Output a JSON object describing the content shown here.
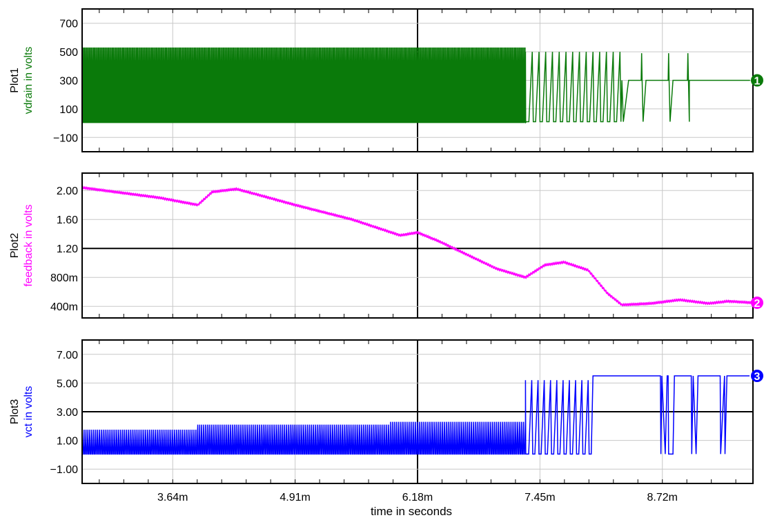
{
  "chart_data": [
    {
      "type": "line",
      "plot_label": "Plot1",
      "ylabel": "vdrain in volts",
      "marker": "1",
      "color": "#0a7a0a",
      "ylim": [
        -200,
        800
      ],
      "yticks": [
        700,
        500,
        300,
        100,
        -100
      ],
      "ytick_labels": [
        "700",
        "500",
        "300",
        "100",
        "−100"
      ],
      "grid_highlight": [],
      "waveform": {
        "kind": "switching",
        "segments": [
          {
            "x_start_ms": 2.7,
            "x_end_ms": 7.3,
            "low": 5,
            "high": 530,
            "flat": 280
          },
          {
            "x_start_ms": 7.3,
            "x_end_ms": 8.3,
            "low": 10,
            "high": 500,
            "flat": 300
          },
          {
            "x_start_ms": 8.3,
            "x_end_ms": 9.66,
            "low": 10,
            "high": 500,
            "flat": 300
          }
        ],
        "settle_value": 300
      },
      "series": [
        {
          "name": "vdrain",
          "x_ms": [
            2.7,
            3.64,
            4.91,
            6.18,
            7.3,
            7.45,
            8.0,
            8.3,
            8.72,
            9.66
          ],
          "envelope_min": [
            5,
            5,
            5,
            5,
            10,
            10,
            10,
            300,
            300,
            300
          ],
          "envelope_max": [
            530,
            530,
            525,
            520,
            500,
            500,
            500,
            300,
            300,
            300
          ]
        }
      ]
    },
    {
      "type": "line",
      "plot_label": "Plot2",
      "ylabel": "feedback in volts",
      "marker": "2",
      "color": "#ff00ff",
      "ylim": [
        0.24,
        2.24
      ],
      "yticks": [
        2.0,
        1.6,
        1.2,
        0.8,
        0.4
      ],
      "ytick_labels": [
        "2.00",
        "1.60",
        "1.20",
        "800m",
        "400m"
      ],
      "grid_highlight": [
        1.2
      ],
      "series": [
        {
          "name": "feedback",
          "x_ms": [
            2.7,
            3.5,
            3.9,
            4.05,
            4.3,
            4.5,
            4.91,
            5.5,
            6.0,
            6.18,
            6.4,
            7.0,
            7.3,
            7.5,
            7.7,
            7.95,
            8.15,
            8.3,
            8.6,
            8.9,
            9.2,
            9.4,
            9.66
          ],
          "values": [
            2.04,
            1.9,
            1.8,
            1.98,
            2.02,
            1.95,
            1.8,
            1.6,
            1.38,
            1.42,
            1.3,
            0.92,
            0.8,
            0.97,
            1.01,
            0.9,
            0.58,
            0.42,
            0.44,
            0.49,
            0.44,
            0.47,
            0.45
          ]
        }
      ]
    },
    {
      "type": "line",
      "plot_label": "Plot3",
      "ylabel": "vct in volts",
      "marker": "3",
      "color": "#0000ff",
      "ylim": [
        -2,
        8
      ],
      "yticks": [
        7,
        5,
        3,
        1,
        -1
      ],
      "ytick_labels": [
        "7.00",
        "5.00",
        "3.00",
        "1.00",
        "−1.00"
      ],
      "grid_highlight": [
        3
      ],
      "waveform": {
        "kind": "switching",
        "segments": [
          {
            "x_start_ms": 2.7,
            "x_end_ms": 3.9,
            "low": 0.05,
            "high": 1.75
          },
          {
            "x_start_ms": 3.9,
            "x_end_ms": 5.9,
            "low": 0.05,
            "high": 2.1
          },
          {
            "x_start_ms": 5.9,
            "x_end_ms": 7.3,
            "low": 0.05,
            "high": 2.3
          },
          {
            "x_start_ms": 7.3,
            "x_end_ms": 8.0,
            "low": 0.05,
            "high": 5.2
          },
          {
            "x_start_ms": 8.0,
            "x_end_ms": 9.66,
            "low": 0.05,
            "high": 5.5
          }
        ],
        "settle_value": 5.5
      },
      "series": [
        {
          "name": "vct",
          "x_ms": [
            2.7,
            3.64,
            3.9,
            4.91,
            5.9,
            6.18,
            7.3,
            7.45,
            8.0,
            8.72,
            9.66
          ],
          "envelope_min": [
            0.05,
            0.05,
            0.05,
            0.05,
            0.05,
            0.05,
            0.05,
            0.05,
            5.5,
            0.05,
            5.5
          ],
          "envelope_max": [
            1.75,
            1.75,
            2.1,
            2.1,
            2.3,
            2.3,
            5.0,
            5.2,
            5.5,
            5.5,
            5.5
          ]
        }
      ]
    }
  ],
  "x_axis": {
    "label": "time in seconds",
    "xlim_ms": [
      2.7,
      9.66
    ],
    "ticks_ms": [
      3.64,
      4.91,
      6.18,
      7.45,
      8.72
    ],
    "tick_labels": [
      "3.64m",
      "4.91m",
      "6.18m",
      "7.45m",
      "8.72m"
    ],
    "highlight_ms": 6.18
  }
}
